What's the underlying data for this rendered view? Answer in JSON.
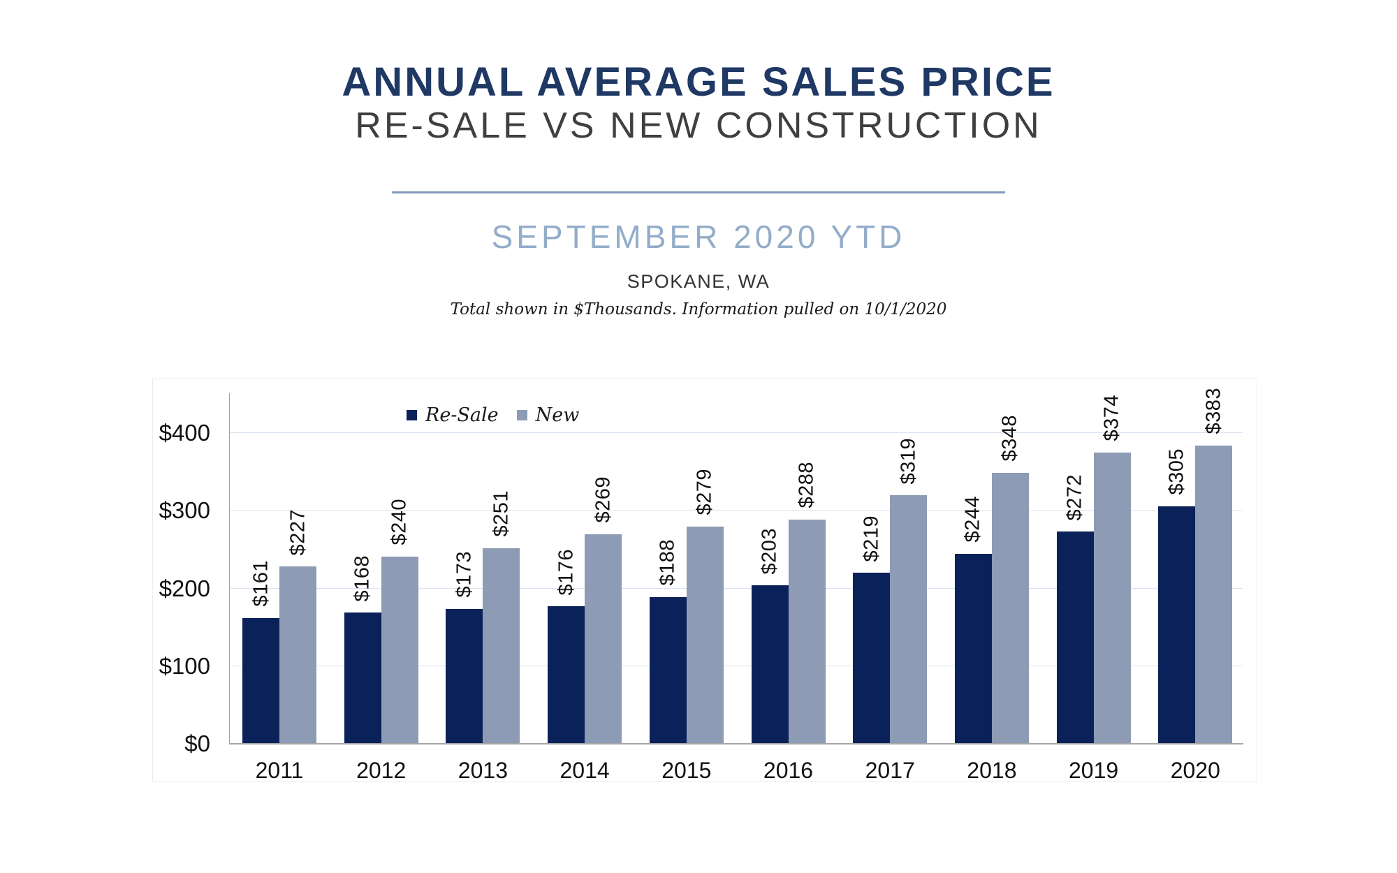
{
  "header": {
    "title": "ANNUAL AVERAGE SALES PRICE",
    "subtitle": "RE-SALE VS NEW CONSTRUCTION",
    "period": "SEPTEMBER 2020 YTD",
    "location": "SPOKANE, WA",
    "footnote": "Total shown in $Thousands. Information pulled on 10/1/2020"
  },
  "chart_data": {
    "type": "bar",
    "title": "ANNUAL AVERAGE SALES PRICE",
    "subtitle": "RE-SALE VS NEW CONSTRUCTION",
    "period": "SEPTEMBER 2020 YTD",
    "location": "SPOKANE, WA",
    "footnote": "Total shown in $Thousands. Information pulled on 10/1/2020",
    "units": "$Thousands",
    "categories": [
      "2011",
      "2012",
      "2013",
      "2014",
      "2015",
      "2016",
      "2017",
      "2018",
      "2019",
      "2020"
    ],
    "series": [
      {
        "name": "Re-Sale",
        "color": "#0B2159",
        "values": [
          161,
          168,
          173,
          176,
          188,
          203,
          219,
          244,
          272,
          305
        ]
      },
      {
        "name": "New",
        "color": "#8D9BB4",
        "values": [
          227,
          240,
          251,
          269,
          279,
          288,
          319,
          348,
          374,
          383
        ]
      }
    ],
    "value_prefix": "$",
    "ytick_values": [
      0,
      100,
      200,
      300,
      400
    ],
    "ytick_labels": [
      "$0",
      "$100",
      "$200",
      "$300",
      "$400"
    ],
    "ylim": [
      0,
      450
    ],
    "grid": true,
    "legend_position": "top-center"
  },
  "colors": {
    "title": "#1F3864",
    "subtitle": "#3F3F3F",
    "period": "#93ADC9",
    "divider": "#8398BA",
    "resale_bar": "#0B2159",
    "new_bar": "#8D9BB4",
    "gridline": "#D9E4F1",
    "axis_line": "#A6A6A6"
  }
}
